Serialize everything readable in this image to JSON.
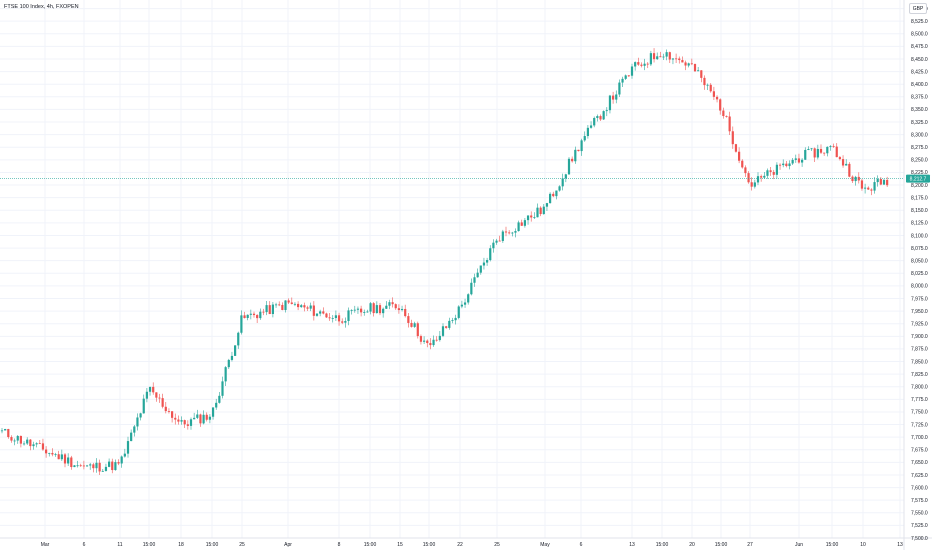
{
  "header": {
    "symbol_title": "FTSE 100 Index, 4h, FXOPEN",
    "currency": "GBP"
  },
  "colors": {
    "up": "#26a69a",
    "down": "#ef5350",
    "grid": "#f0f3fa",
    "axis_text": "#131722",
    "price_line": "#26a69a"
  },
  "chart_data": {
    "type": "candlestick",
    "y_axis": {
      "position": "right",
      "range": [
        7500,
        8567
      ],
      "ticks": [
        "8,550.0",
        "8,525.0",
        "8,500.0",
        "8,475.0",
        "8,450.0",
        "8,425.0",
        "8,400.0",
        "8,375.0",
        "8,350.0",
        "8,325.0",
        "8,300.0",
        "8,275.0",
        "8,250.0",
        "8,225.0",
        "8,200.0",
        "8,175.0",
        "8,150.0",
        "8,125.0",
        "8,100.0",
        "8,075.0",
        "8,050.0",
        "8,025.0",
        "8,000.0",
        "7,975.0",
        "7,950.0",
        "7,925.0",
        "7,900.0",
        "7,875.0",
        "7,850.0",
        "7,825.0",
        "7,800.0",
        "7,775.0",
        "7,750.0",
        "7,725.0",
        "7,700.0",
        "7,675.0",
        "7,650.0",
        "7,625.0",
        "7,600.0",
        "7,575.0",
        "7,550.0",
        "7,525.0",
        "7,500.0"
      ]
    },
    "x_axis": {
      "ticks": [
        "Mar",
        "6",
        "11",
        "15:00",
        "18",
        "15:00",
        "25",
        "Apr",
        "8",
        "15:00",
        "15",
        "15:00",
        "22",
        "25",
        "May",
        "6",
        "13",
        "15:00",
        "20",
        "15:00",
        "27",
        "Jun",
        "15:00",
        "10",
        "13"
      ]
    },
    "last_price": "8,212.7",
    "anchors": [
      [
        "Mar",
        7710
      ],
      [
        "6",
        7640
      ],
      [
        "11",
        7645
      ],
      [
        "15:00",
        7795
      ],
      [
        "18",
        7725
      ],
      [
        "15:00",
        7745
      ],
      [
        "25",
        7935
      ],
      [
        "Apr",
        7965
      ],
      [
        "8",
        7935
      ],
      [
        "15:00",
        7955
      ],
      [
        "15",
        7960
      ],
      [
        "15:00",
        7875
      ],
      [
        "22",
        7955
      ],
      [
        "25",
        8095
      ],
      [
        "May",
        8155
      ],
      [
        "6",
        8285
      ],
      [
        "13",
        8430
      ],
      [
        "15:00",
        8465
      ],
      [
        "20",
        8435
      ],
      [
        "15:00",
        8355
      ],
      [
        "27",
        8200
      ],
      [
        "Jun",
        8255
      ],
      [
        "15:00",
        8275
      ],
      [
        "10",
        8190
      ],
      [
        "13",
        8212.7
      ]
    ],
    "grid": true,
    "legend": "none"
  }
}
